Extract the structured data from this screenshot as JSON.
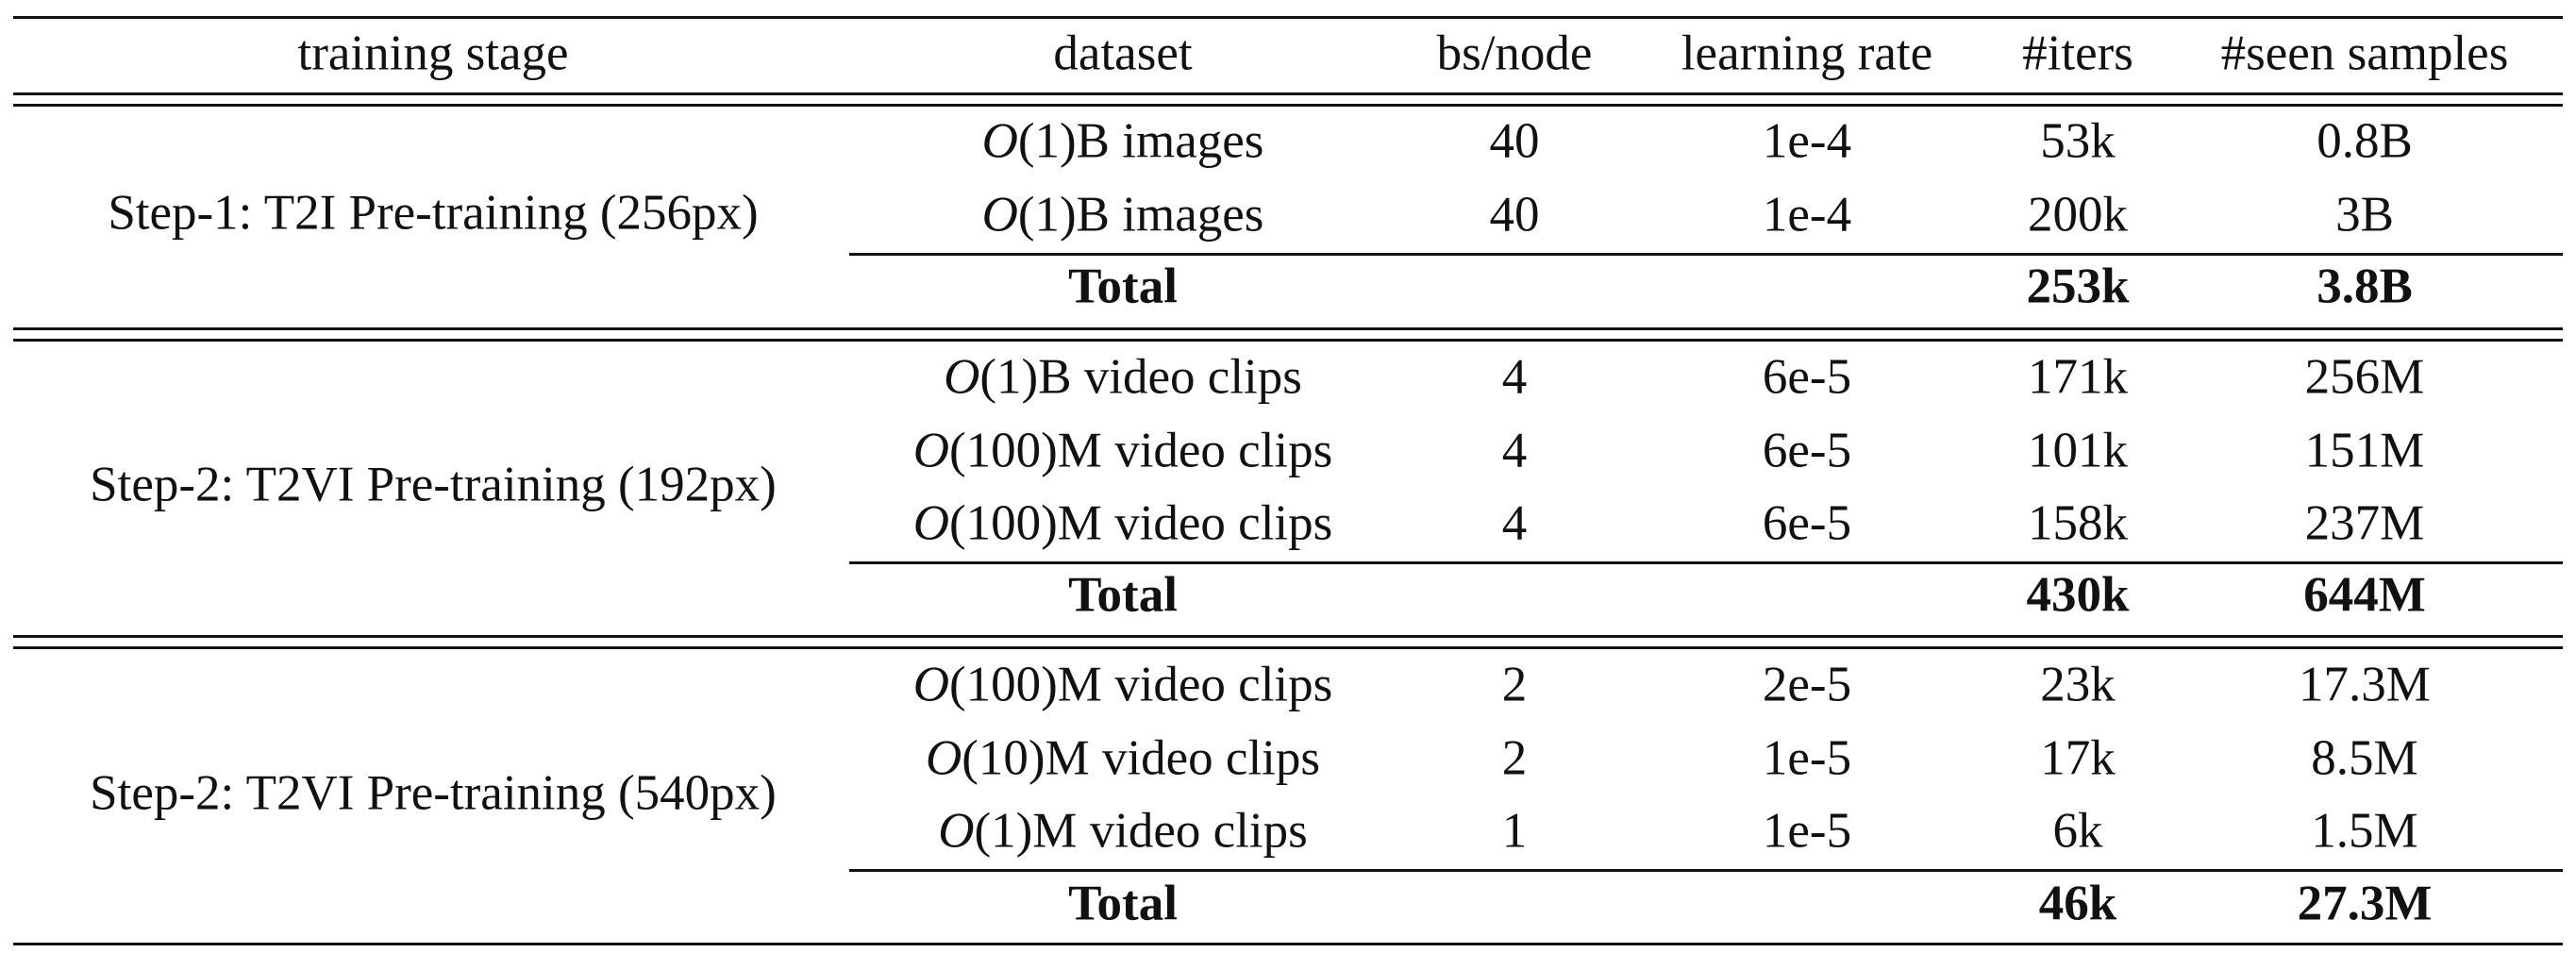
{
  "table": {
    "headers": [
      "training stage",
      "dataset",
      "bs/node",
      "learning rate",
      "#iters",
      "#seen samples"
    ],
    "groups": [
      {
        "stage": "Step-1: T2I Pre-training (256px)",
        "rows": [
          {
            "order": "1",
            "unit": "B",
            "kind": "images",
            "bs": "40",
            "lr": "1e-4",
            "iters": "53k",
            "seen": "0.8B"
          },
          {
            "order": "1",
            "unit": "B",
            "kind": "images",
            "bs": "40",
            "lr": "1e-4",
            "iters": "200k",
            "seen": "3B"
          }
        ],
        "total": {
          "label": "Total",
          "iters": "253k",
          "seen": "3.8B"
        }
      },
      {
        "stage": "Step-2: T2VI Pre-training (192px)",
        "rows": [
          {
            "order": "1",
            "unit": "B",
            "kind": "video clips",
            "bs": "4",
            "lr": "6e-5",
            "iters": "171k",
            "seen": "256M"
          },
          {
            "order": "100",
            "unit": "M",
            "kind": "video clips",
            "bs": "4",
            "lr": "6e-5",
            "iters": "101k",
            "seen": "151M"
          },
          {
            "order": "100",
            "unit": "M",
            "kind": "video clips",
            "bs": "4",
            "lr": "6e-5",
            "iters": "158k",
            "seen": "237M"
          }
        ],
        "total": {
          "label": "Total",
          "iters": "430k",
          "seen": "644M"
        }
      },
      {
        "stage": "Step-2: T2VI Pre-training (540px)",
        "rows": [
          {
            "order": "100",
            "unit": "M",
            "kind": "video clips",
            "bs": "2",
            "lr": "2e-5",
            "iters": "23k",
            "seen": "17.3M"
          },
          {
            "order": "10",
            "unit": "M",
            "kind": "video clips",
            "bs": "2",
            "lr": "1e-5",
            "iters": "17k",
            "seen": "8.5M"
          },
          {
            "order": "1",
            "unit": "M",
            "kind": "video clips",
            "bs": "1",
            "lr": "1e-5",
            "iters": "6k",
            "seen": "1.5M"
          }
        ],
        "total": {
          "label": "Total",
          "iters": "46k",
          "seen": "27.3M"
        }
      }
    ]
  }
}
